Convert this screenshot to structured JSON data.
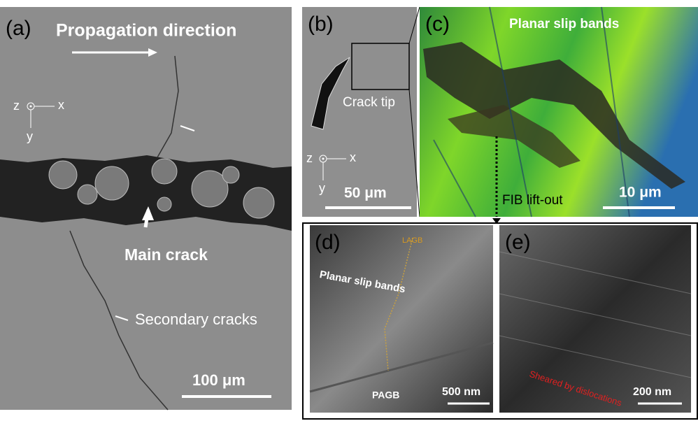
{
  "panel_a": {
    "label": "(a)",
    "title": "Propagation direction",
    "axis_z": "z",
    "axis_x": "x",
    "axis_y": "y",
    "main_crack": "Main crack",
    "secondary_cracks": "Secondary cracks",
    "scale_bar": "100 μm"
  },
  "panel_b": {
    "label": "(b)",
    "crack_tip": "Crack tip",
    "axis_z": "z",
    "axis_x": "x",
    "axis_y": "y",
    "scale_bar": "50 μm"
  },
  "panel_c": {
    "label": "(c)",
    "annotation": "Planar slip bands",
    "scale_bar": "10 μm",
    "lift_out": "FIB lift-out"
  },
  "panel_d": {
    "label": "(d)",
    "lagb": "LAGB",
    "annotation": "Planar slip bands",
    "pagb": "PAGB",
    "scale_bar": "500 nm"
  },
  "panel_e": {
    "label": "(e)",
    "annotation": "Sheared by dislocations",
    "scale_bar": "200 nm"
  }
}
